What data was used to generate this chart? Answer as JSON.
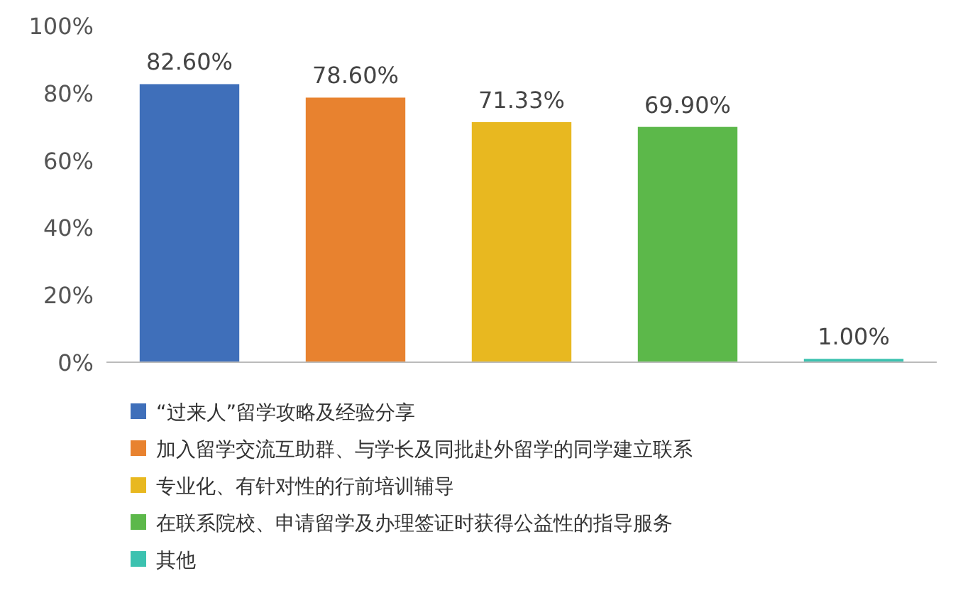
{
  "chart_data": {
    "type": "bar",
    "categories": [
      null,
      null,
      null,
      null,
      null
    ],
    "ylim": [
      0,
      100
    ],
    "yticks": [
      {
        "value": 0,
        "label": "0%"
      },
      {
        "value": 20,
        "label": "20%"
      },
      {
        "value": 40,
        "label": "40%"
      },
      {
        "value": 60,
        "label": "60%"
      },
      {
        "value": 80,
        "label": "80%"
      },
      {
        "value": 100,
        "label": "100%"
      }
    ],
    "grid": false,
    "legend": "bottom",
    "series": [
      {
        "name": "“过来人”留学攻略及经验分享",
        "color": "#3f6fba",
        "values": [
          82.6,
          null,
          null,
          null,
          null
        ],
        "value_labels": [
          "82.60%",
          null,
          null,
          null,
          null
        ]
      },
      {
        "name": "加入留学交流互助群、与学长及同批赴外留学的同学建立联系",
        "color": "#e8822f",
        "values": [
          null,
          78.6,
          null,
          null,
          null
        ],
        "value_labels": [
          null,
          "78.60%",
          null,
          null,
          null
        ]
      },
      {
        "name": "专业化、有针对性的行前培训辅导",
        "color": "#e8b820",
        "values": [
          null,
          null,
          71.33,
          null,
          null
        ],
        "value_labels": [
          null,
          null,
          "71.33%",
          null,
          null
        ]
      },
      {
        "name": "在联系院校、申请留学及办理签证时获得公益性的指导服务",
        "color": "#5cb84a",
        "values": [
          null,
          null,
          null,
          69.9,
          null
        ],
        "value_labels": [
          null,
          null,
          null,
          "69.90%",
          null
        ]
      },
      {
        "name": "其他",
        "color": "#3cc2b0",
        "values": [
          null,
          null,
          null,
          null,
          1.0
        ],
        "value_labels": [
          null,
          null,
          null,
          null,
          "1.00%"
        ]
      }
    ]
  }
}
